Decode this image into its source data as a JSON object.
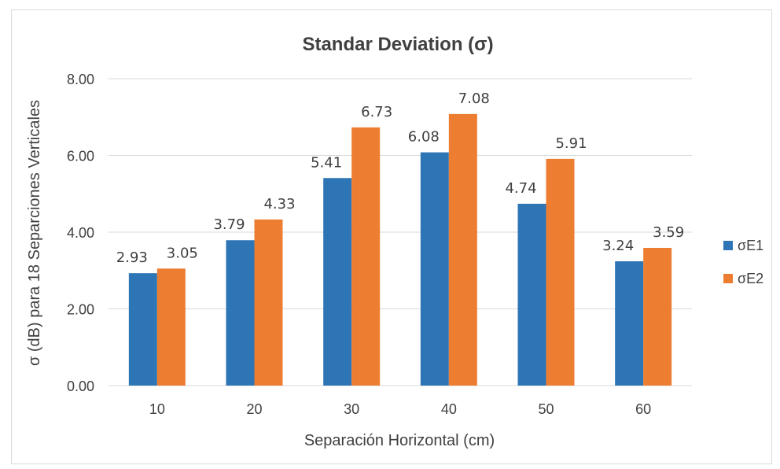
{
  "chart_data": {
    "type": "bar",
    "title": "Standar Deviation (σ)",
    "xlabel": "Separación Horizontal (cm)",
    "ylabel": "σ (dB) para 18 Separciones Verticales",
    "categories": [
      "10",
      "20",
      "30",
      "40",
      "50",
      "60"
    ],
    "series": [
      {
        "name": "σE1",
        "values": [
          2.93,
          3.79,
          5.41,
          6.08,
          4.74,
          3.24
        ],
        "labels": [
          "2.93",
          "3.79",
          "5.41",
          "6.08",
          "4.74",
          "3.24"
        ],
        "color": "#2E75B6"
      },
      {
        "name": "σE2",
        "values": [
          3.05,
          4.33,
          6.73,
          7.08,
          5.91,
          3.59
        ],
        "labels": [
          "3.05",
          "4.33",
          "6.73",
          "7.08",
          "5.91",
          "3.59"
        ],
        "color": "#ED7D31"
      }
    ],
    "ylim": [
      0,
      8
    ],
    "yticks": [
      "0.00",
      "2.00",
      "4.00",
      "6.00",
      "8.00"
    ],
    "grid": true,
    "legend_position": "right"
  }
}
